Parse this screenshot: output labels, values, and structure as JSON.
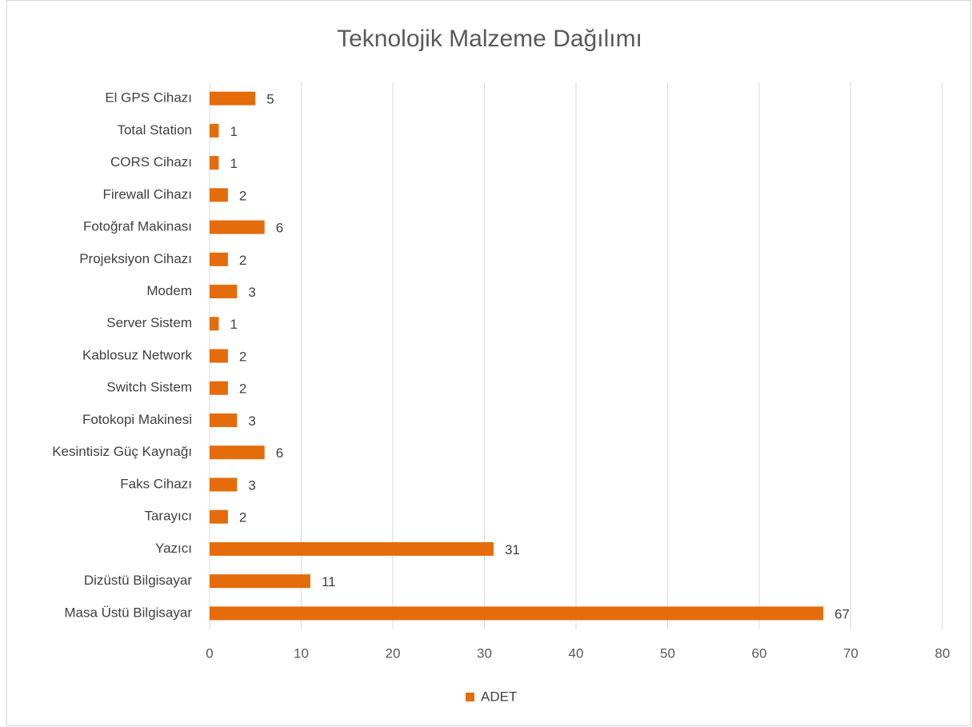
{
  "chart_data": {
    "type": "hbar",
    "title": "Teknolojik Malzeme Dağılımı",
    "categories": [
      "El GPS Cihazı",
      "Total Station",
      "CORS Cihazı",
      "Firewall Cihazı",
      "Fotoğraf Makinası",
      "Projeksiyon Cihazı",
      "Modem",
      "Server Sistem",
      "Kablosuz Network",
      "Switch Sistem",
      "Fotokopi Makinesi",
      "Kesintisiz Güç Kaynağı",
      "Faks Cihazı",
      "Tarayıcı",
      "Yazıcı",
      "Dizüstü Bilgisayar",
      "Masa Üstü Bilgisayar"
    ],
    "series": [
      {
        "name": "ADET",
        "color": "#e46c0a",
        "values": [
          5,
          1,
          1,
          2,
          6,
          2,
          3,
          1,
          2,
          2,
          3,
          6,
          3,
          2,
          31,
          11,
          67
        ]
      }
    ],
    "xlim": [
      0,
      80
    ],
    "xticks": [
      0,
      10,
      20,
      30,
      40,
      50,
      60,
      70,
      80
    ],
    "grid": true,
    "legend": "bottom"
  }
}
